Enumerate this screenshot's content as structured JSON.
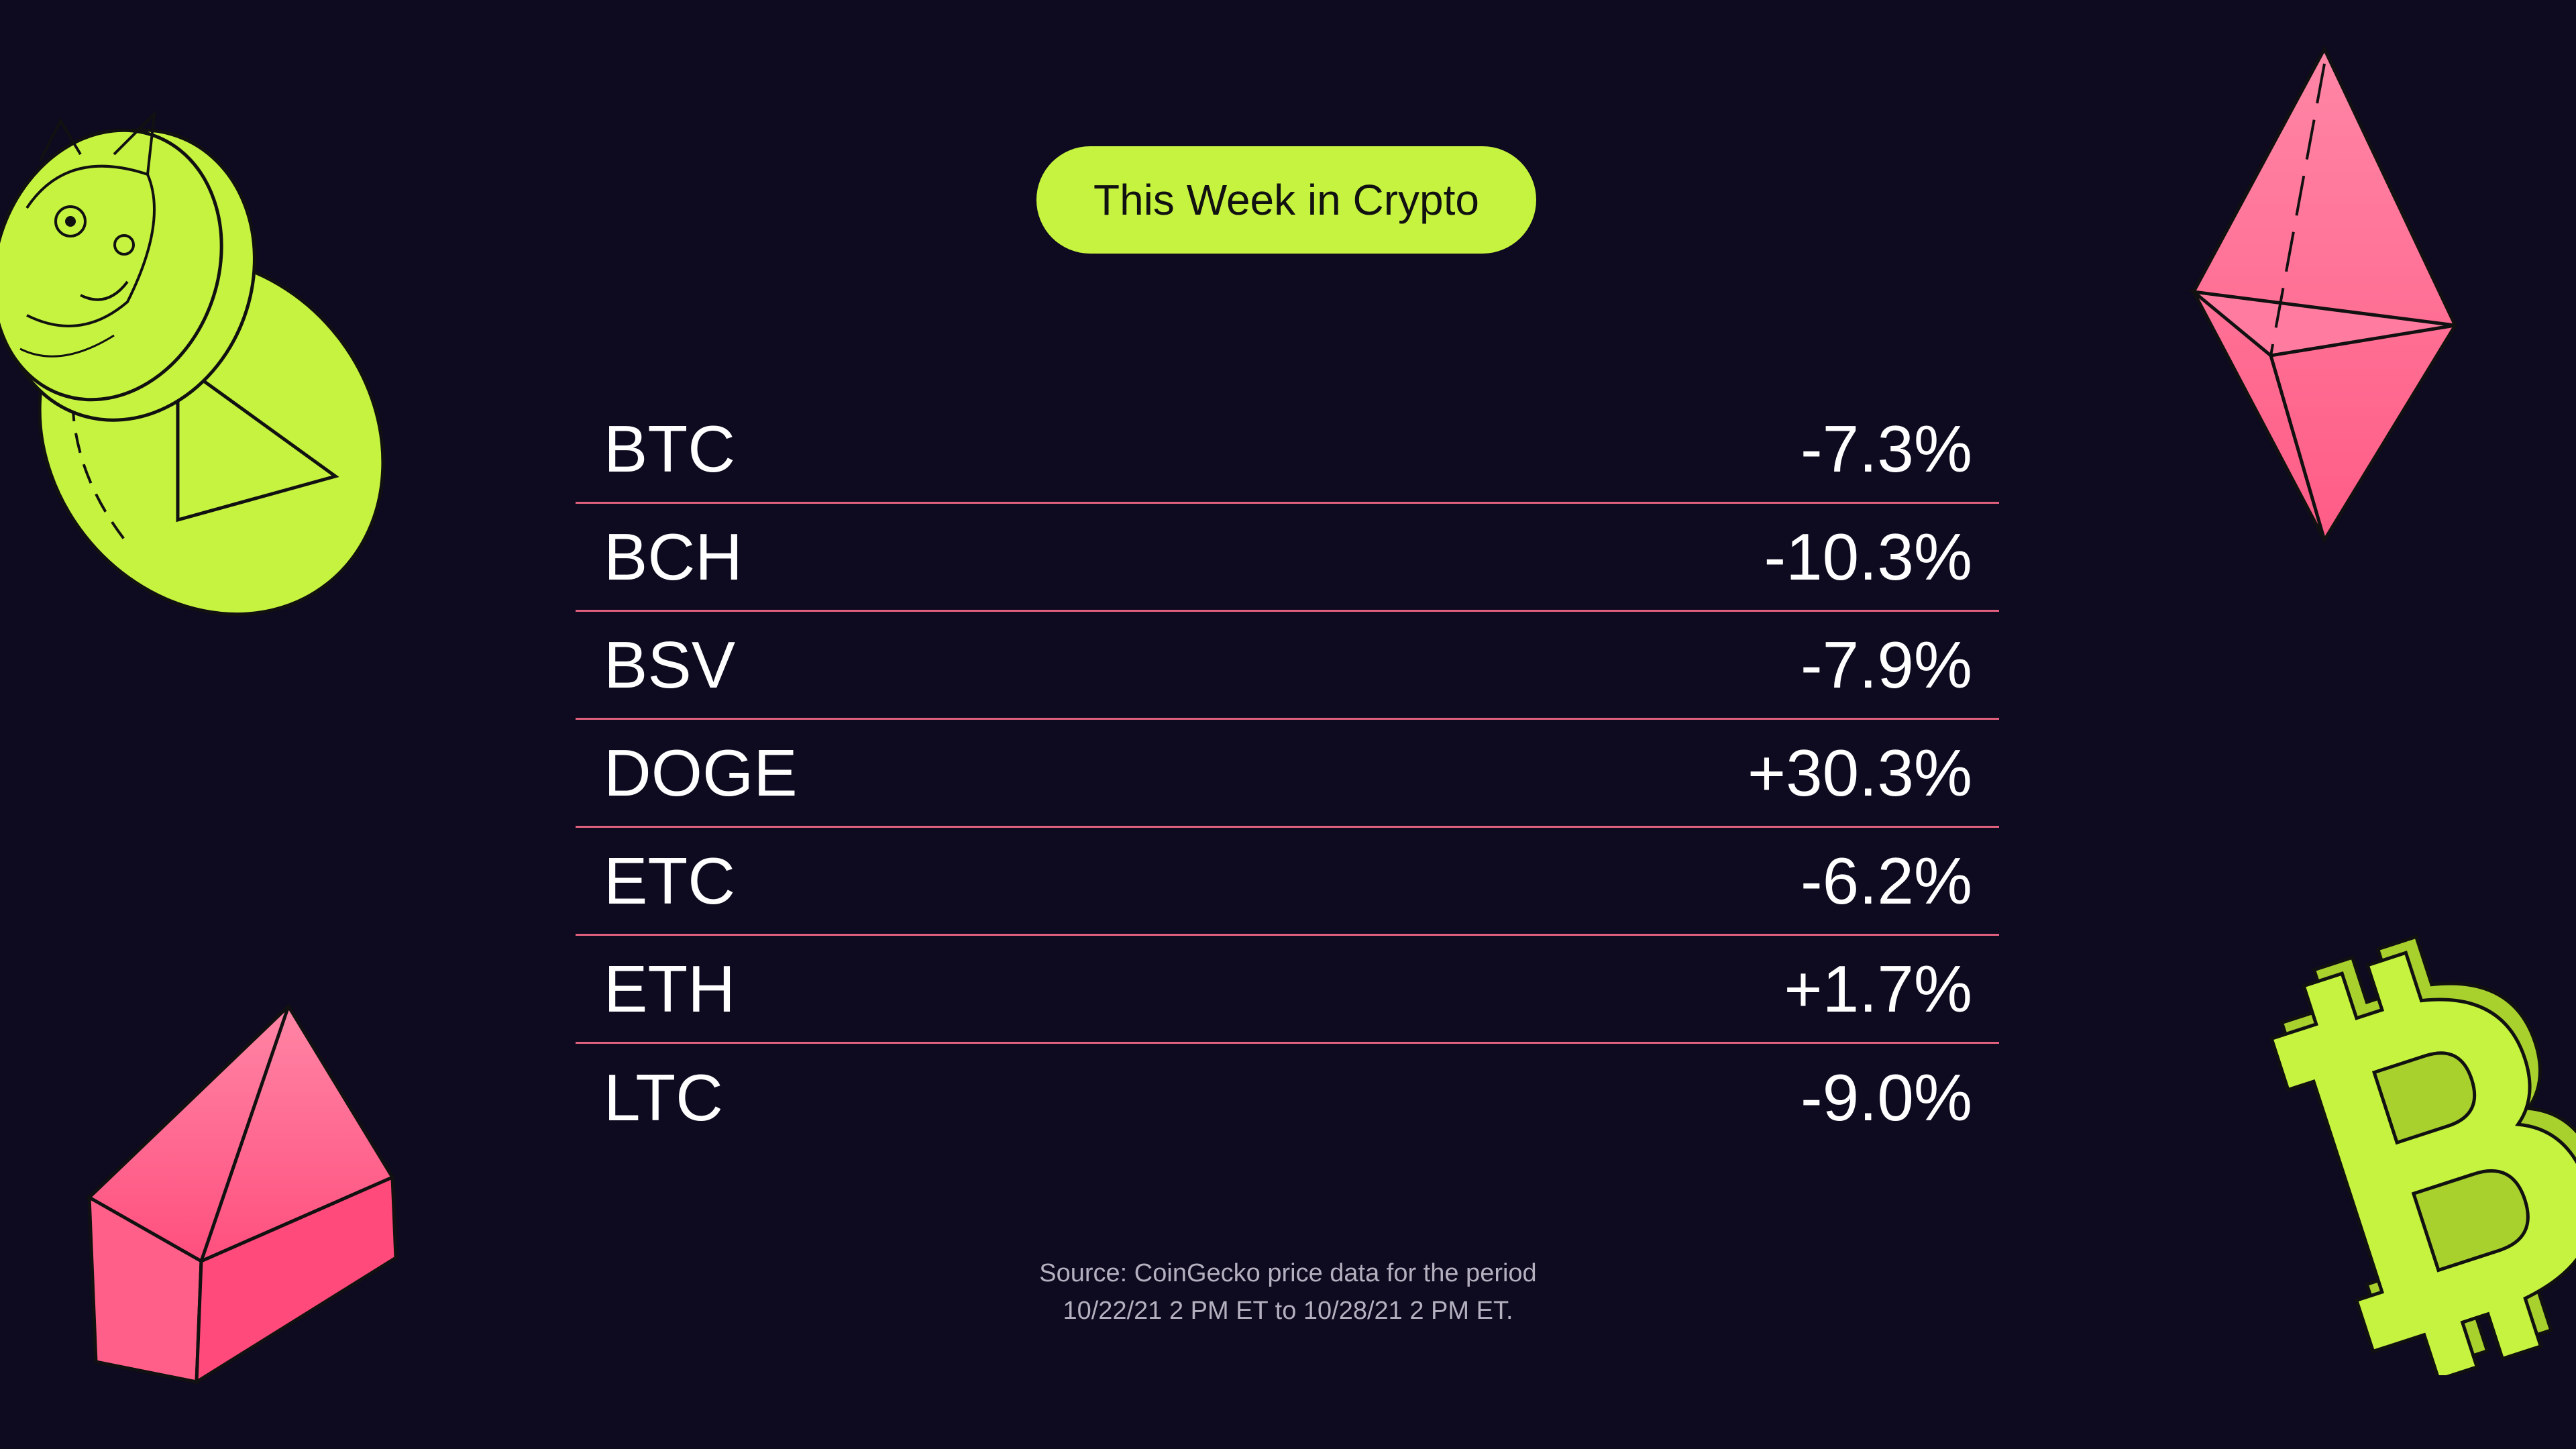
{
  "header": {
    "title": "This Week in Crypto"
  },
  "rows": [
    {
      "ticker": "BTC",
      "change": "-7.3%"
    },
    {
      "ticker": "BCH",
      "change": "-10.3%"
    },
    {
      "ticker": "BSV",
      "change": "-7.9%"
    },
    {
      "ticker": "DOGE",
      "change": "+30.3%"
    },
    {
      "ticker": "ETC",
      "change": "-6.2%"
    },
    {
      "ticker": "ETH",
      "change": "+1.7%"
    },
    {
      "ticker": "LTC",
      "change": "-9.0%"
    }
  ],
  "footer": {
    "source_line1": "Source: CoinGecko price data for the period",
    "source_line2": "10/22/21 2 PM ET to 10/28/21 2 PM ET."
  },
  "colors": {
    "background": "#0e0a1f",
    "accent_green": "#c6f33f",
    "accent_pink": "#ff6f95",
    "divider": "#e0607d"
  },
  "icons": [
    "doge-coin-icon",
    "ethereum-crystal-icon",
    "gem-crystal-icon",
    "bitcoin-symbol-icon"
  ]
}
